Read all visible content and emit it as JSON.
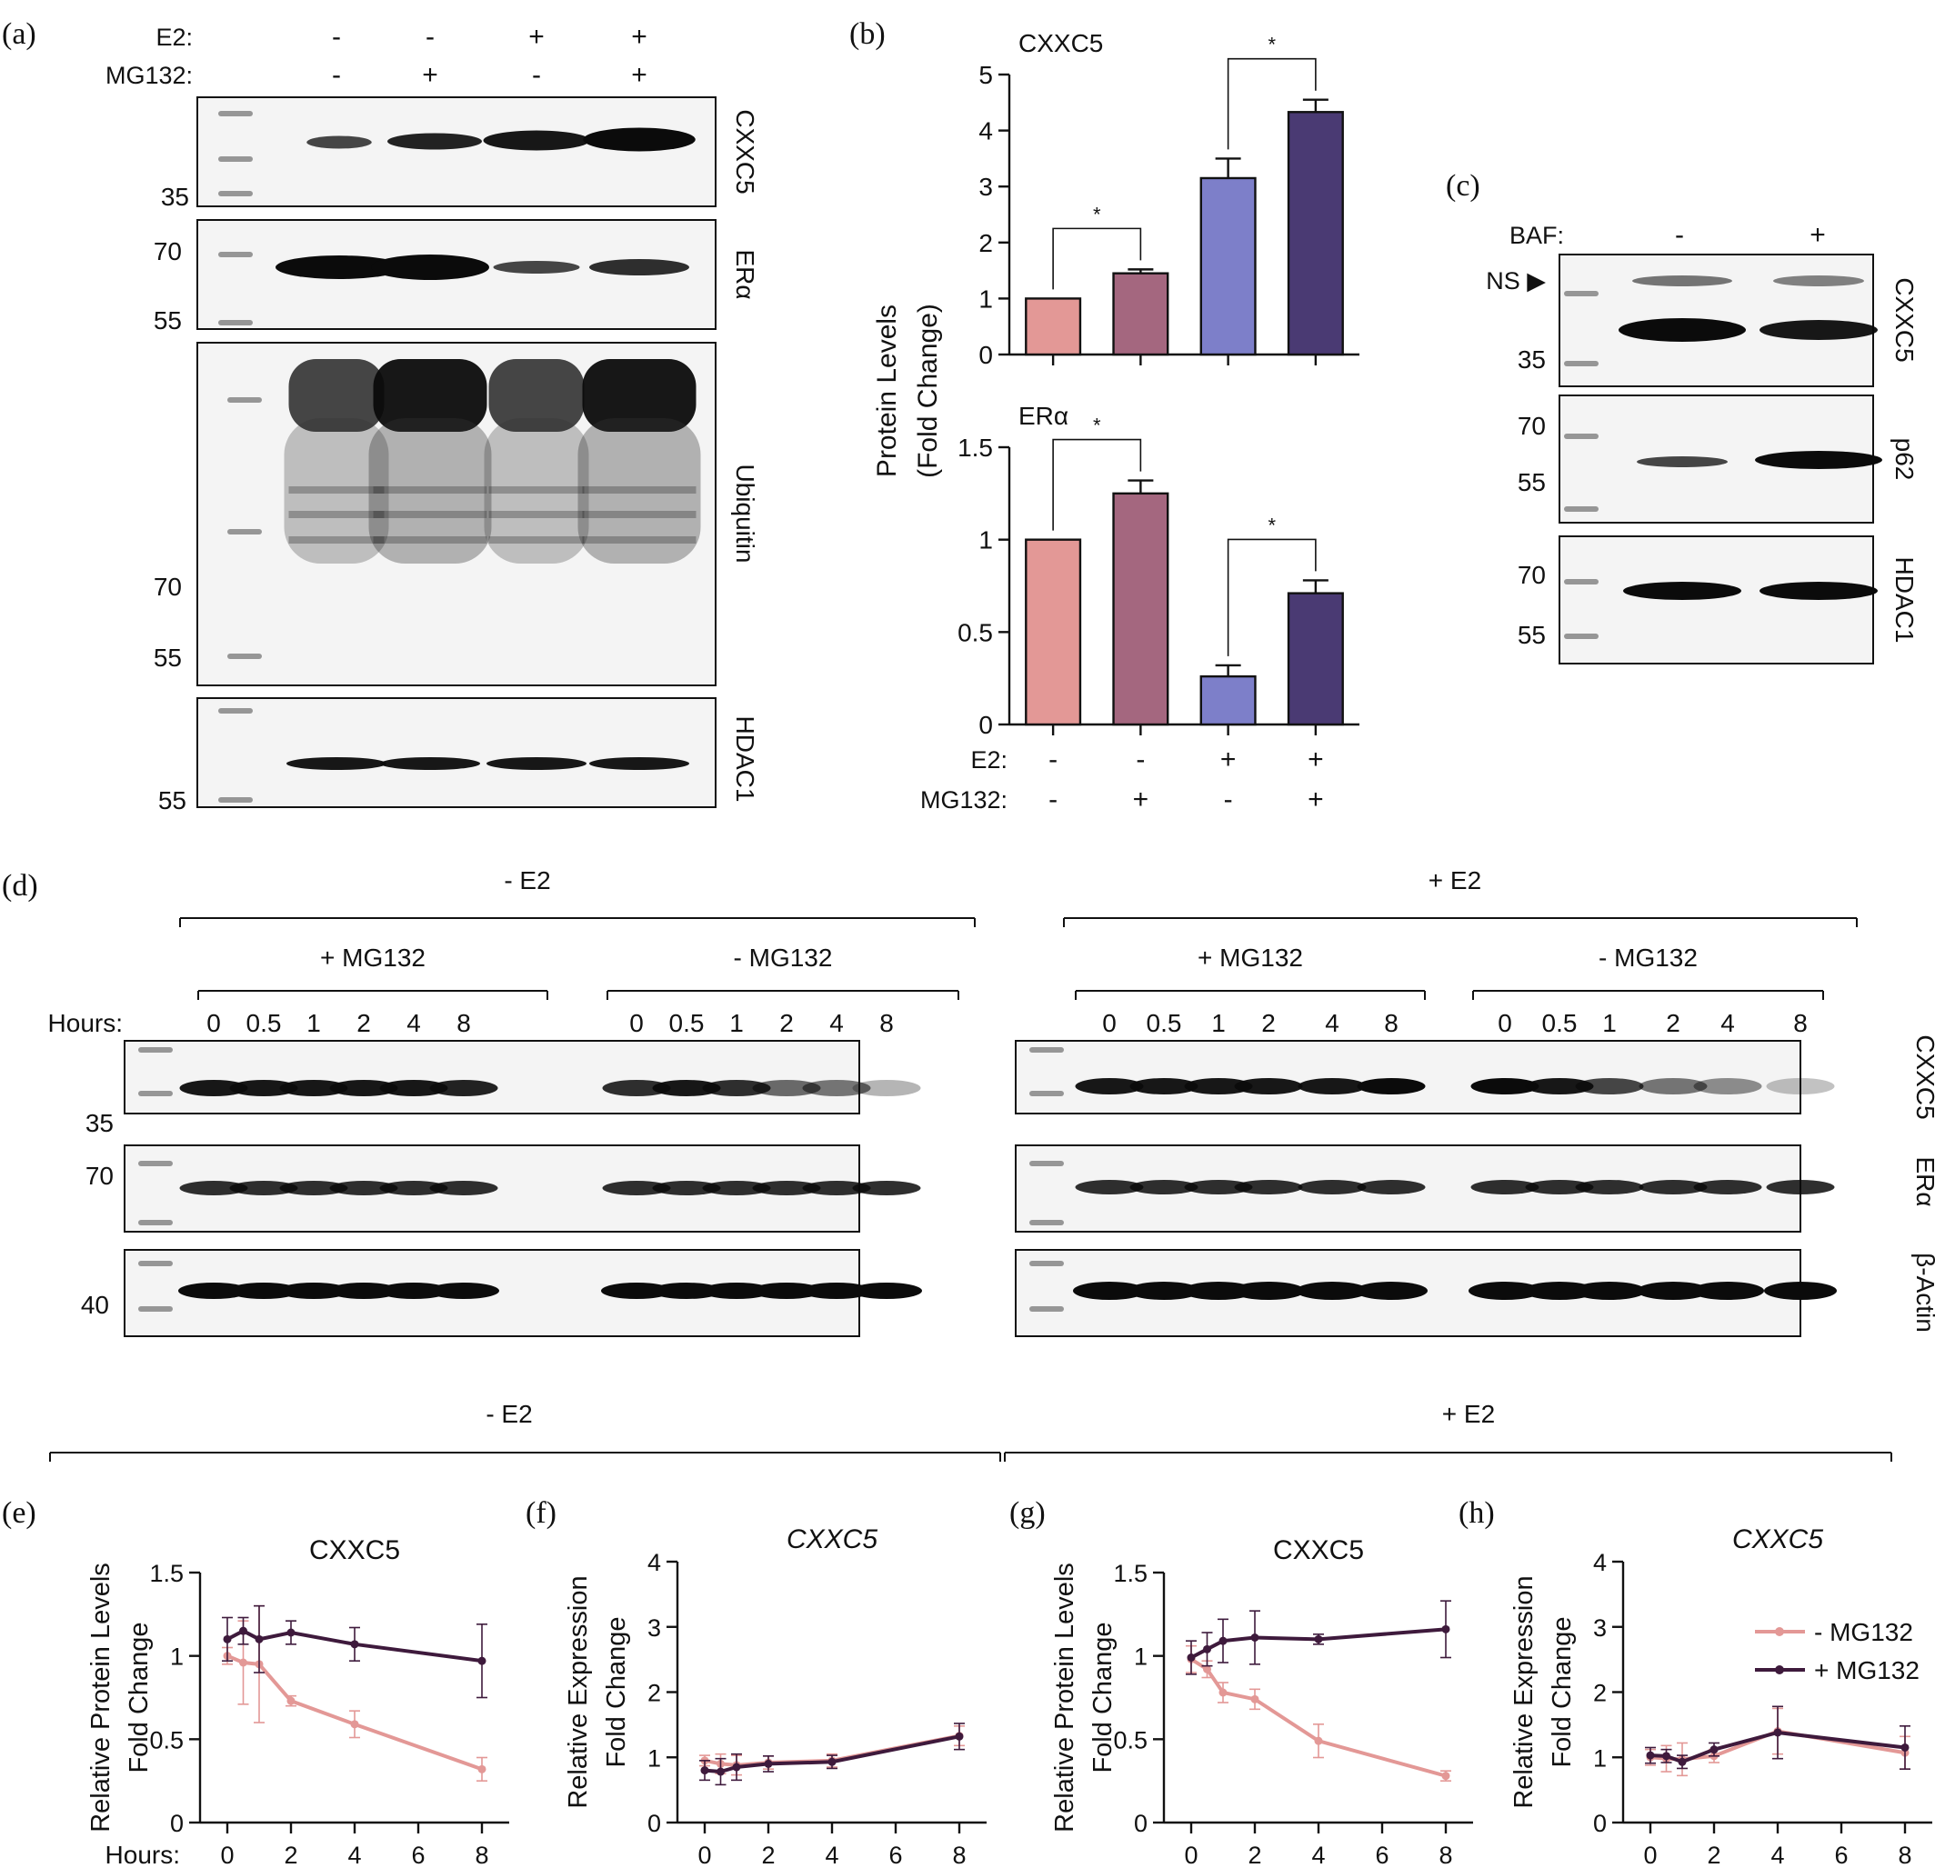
{
  "panel_letters": {
    "a": "(a)",
    "b": "(b)",
    "c": "(c)",
    "d": "(d)",
    "e": "(e)",
    "f": "(f)",
    "g": "(g)",
    "h": "(h)"
  },
  "panel_a": {
    "treat_labels": [
      "E2:",
      "MG132:"
    ],
    "e2_signs": [
      "-",
      "-",
      "+",
      "+"
    ],
    "mg132_signs": [
      "-",
      "+",
      "-",
      "+"
    ],
    "blots": [
      "CXXC5",
      "ERα",
      "Ubiquitin",
      "HDAC1"
    ],
    "markers": {
      "cxxc5": [
        "35"
      ],
      "era": [
        "70",
        "55"
      ],
      "ubiquitin": [
        "70",
        "55"
      ],
      "hdac1": [
        "55"
      ]
    }
  },
  "panel_c": {
    "treat_label": "BAF:",
    "signs": [
      "-",
      "+"
    ],
    "ns_label": "NS ▶",
    "blots": [
      "CXXC5",
      "p62",
      "HDAC1"
    ],
    "markers": {
      "cxxc5": [
        "35"
      ],
      "p62": [
        "70",
        "55"
      ],
      "hdac1": [
        "70",
        "55"
      ]
    }
  },
  "panel_d": {
    "group_left": "- E2",
    "group_right": "+ E2",
    "sub_groups": [
      "+ MG132",
      "- MG132",
      "+ MG132",
      "- MG132"
    ],
    "hours_label": "Hours:",
    "hours": [
      "0",
      "0.5",
      "1",
      "2",
      "4",
      "8"
    ],
    "blots": [
      "CXXC5",
      "ERα",
      "β-Actin"
    ],
    "markers": [
      "35",
      "70",
      "40"
    ]
  },
  "bottom_groups": {
    "left": "- E2",
    "right": "+ E2"
  },
  "chart_data": [
    {
      "panel": "b-top",
      "type": "bar",
      "title": "CXXC5",
      "ylabel": "Protein Levels (Fold Change)",
      "ylim": [
        0,
        5
      ],
      "yticks": [
        0,
        1,
        2,
        3,
        4,
        5
      ],
      "categories": [
        "-E2 -MG132",
        "-E2 +MG132",
        "+E2 -MG132",
        "+E2 +MG132"
      ],
      "values": [
        1.0,
        1.45,
        3.15,
        4.33
      ],
      "errors": [
        0,
        0.07,
        0.35,
        0.22
      ],
      "colors": [
        "#e39896",
        "#a4677f",
        "#7d7fc9",
        "#4a3a73"
      ],
      "significance": [
        {
          "pair": [
            0,
            1
          ],
          "label": "*"
        },
        {
          "pair": [
            2,
            3
          ],
          "label": "*"
        }
      ]
    },
    {
      "panel": "b-bottom",
      "type": "bar",
      "title": "ERα",
      "ylabel": "Protein Levels (Fold Change)",
      "ylim": [
        0,
        1.5
      ],
      "yticks": [
        "0",
        "0.5",
        "1",
        "1.5"
      ],
      "categories": [
        "-E2 -MG132",
        "-E2 +MG132",
        "+E2 -MG132",
        "+E2 +MG132"
      ],
      "values": [
        1.0,
        1.25,
        0.26,
        0.71
      ],
      "errors": [
        0,
        0.07,
        0.06,
        0.07
      ],
      "colors": [
        "#e39896",
        "#a4677f",
        "#7d7fc9",
        "#4a3a73"
      ],
      "significance": [
        {
          "pair": [
            0,
            1
          ],
          "label": "*"
        },
        {
          "pair": [
            2,
            3
          ],
          "label": "*"
        }
      ],
      "x_rows": {
        "labels": [
          "E2:",
          "MG132:"
        ],
        "e2": [
          "-",
          "-",
          "+",
          "+"
        ],
        "mg132": [
          "-",
          "+",
          "-",
          "+"
        ]
      }
    },
    {
      "panel": "e",
      "type": "line",
      "title": "CXXC5",
      "ylabel": "Relative Protein Levels Fold Change",
      "xlabel": "Hours:",
      "ylim": [
        0,
        1.5
      ],
      "yticks": [
        "0",
        "0.5",
        "1",
        "1.5"
      ],
      "xticks": [
        "0",
        "2",
        "4",
        "6",
        "8"
      ],
      "series": [
        {
          "name": "- MG132",
          "color": "#e39896",
          "x": [
            0,
            0.5,
            1,
            2,
            4,
            8
          ],
          "y": [
            1.0,
            0.96,
            0.95,
            0.73,
            0.59,
            0.32
          ],
          "err": [
            0.05,
            0.25,
            0.35,
            0.03,
            0.08,
            0.07
          ]
        },
        {
          "name": "+ MG132",
          "color": "#3e1a3c",
          "x": [
            0,
            0.5,
            1,
            2,
            4,
            8
          ],
          "y": [
            1.1,
            1.15,
            1.1,
            1.14,
            1.07,
            0.97
          ],
          "err": [
            0.13,
            0.08,
            0.2,
            0.07,
            0.1,
            0.22
          ]
        }
      ]
    },
    {
      "panel": "f",
      "type": "line",
      "title": "CXXC5",
      "ylabel": "Relative Expression Fold Change",
      "ylim": [
        0,
        4
      ],
      "yticks": [
        "0",
        "1",
        "2",
        "3",
        "4"
      ],
      "xticks": [
        "0",
        "2",
        "4",
        "6",
        "8"
      ],
      "series": [
        {
          "name": "- MG132",
          "color": "#e39896",
          "x": [
            0,
            0.5,
            1,
            2,
            4,
            8
          ],
          "y": [
            0.95,
            0.9,
            0.88,
            0.92,
            0.95,
            1.33
          ],
          "err": [
            0.08,
            0.15,
            0.15,
            0.1,
            0.1,
            0.15
          ]
        },
        {
          "name": "+ MG132",
          "color": "#3e1a3c",
          "x": [
            0,
            0.5,
            1,
            2,
            4,
            8
          ],
          "y": [
            0.8,
            0.78,
            0.85,
            0.9,
            0.93,
            1.32
          ],
          "err": [
            0.15,
            0.2,
            0.2,
            0.12,
            0.1,
            0.2
          ]
        }
      ]
    },
    {
      "panel": "g",
      "type": "line",
      "title": "CXXC5",
      "ylabel": "Relative Protein Levels Fold Change",
      "ylim": [
        0,
        1.5
      ],
      "yticks": [
        "0",
        "0.5",
        "1",
        "1.5"
      ],
      "xticks": [
        "0",
        "2",
        "4",
        "6",
        "8"
      ],
      "series": [
        {
          "name": "- MG132",
          "color": "#e39896",
          "x": [
            0,
            0.5,
            1,
            2,
            4,
            8
          ],
          "y": [
            0.98,
            0.92,
            0.78,
            0.74,
            0.49,
            0.28
          ],
          "err": [
            0.08,
            0.05,
            0.06,
            0.06,
            0.1,
            0.03
          ]
        },
        {
          "name": "+ MG132",
          "color": "#3e1a3c",
          "x": [
            0,
            0.5,
            1,
            2,
            4,
            8
          ],
          "y": [
            0.99,
            1.04,
            1.09,
            1.11,
            1.1,
            1.16
          ],
          "err": [
            0.1,
            0.1,
            0.13,
            0.16,
            0.03,
            0.17
          ]
        }
      ]
    },
    {
      "panel": "h",
      "type": "line",
      "title": "CXXC5",
      "ylabel": "Relative Expression Fold Change",
      "ylim": [
        0,
        4
      ],
      "yticks": [
        "0",
        "1",
        "2",
        "3",
        "4"
      ],
      "xticks": [
        "0",
        "2",
        "4",
        "6",
        "8"
      ],
      "legend": "top-right",
      "series": [
        {
          "name": "- MG132",
          "color": "#e39896",
          "x": [
            0,
            0.5,
            1,
            2,
            4,
            8
          ],
          "y": [
            1.0,
            0.98,
            0.97,
            1.02,
            1.4,
            1.07
          ],
          "err": [
            0.12,
            0.2,
            0.25,
            0.1,
            0.35,
            0.25
          ]
        },
        {
          "name": "+ MG132",
          "color": "#3e1a3c",
          "x": [
            0,
            0.5,
            1,
            2,
            4,
            8
          ],
          "y": [
            1.03,
            1.02,
            0.93,
            1.12,
            1.38,
            1.15
          ],
          "err": [
            0.12,
            0.1,
            0.1,
            0.1,
            0.4,
            0.33
          ]
        }
      ]
    }
  ]
}
